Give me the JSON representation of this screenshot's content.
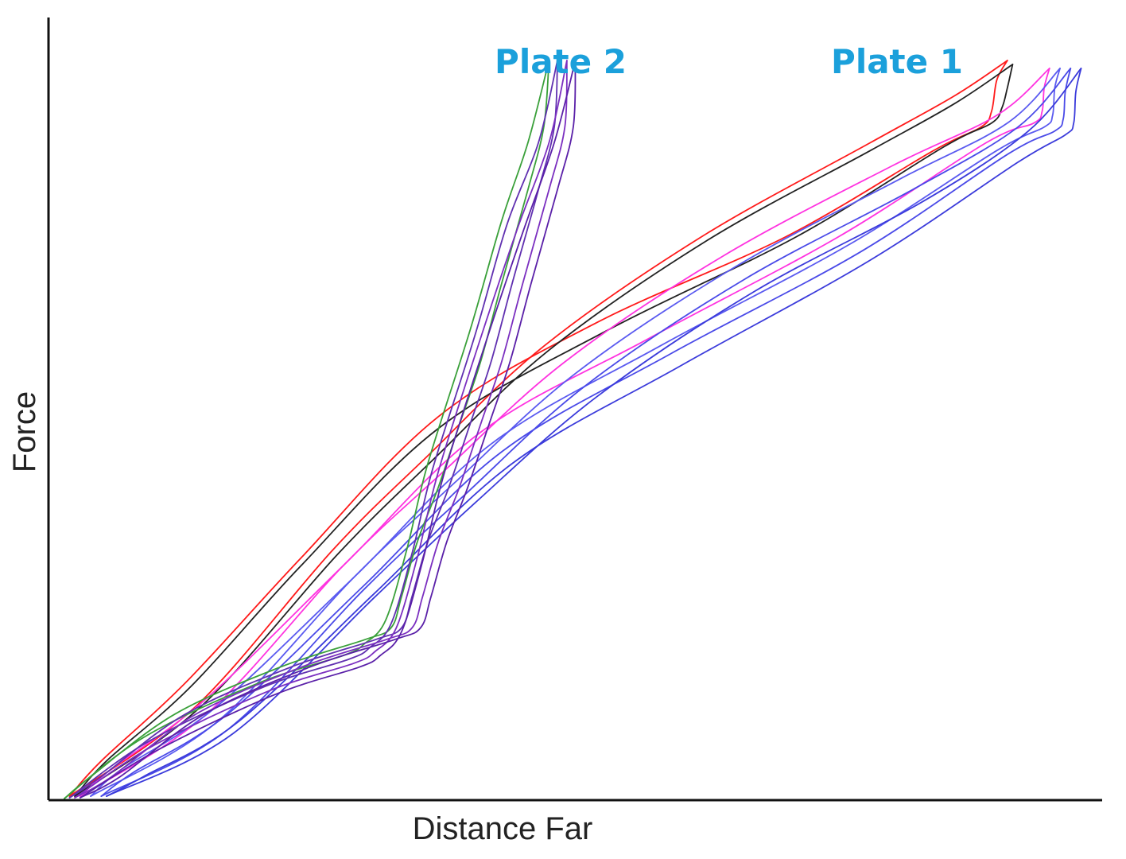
{
  "chart_data": {
    "type": "line",
    "title": "",
    "xlabel": "Distance Far",
    "ylabel": "Force",
    "xlim": [
      0,
      100
    ],
    "ylim": [
      0,
      100
    ],
    "grid": false,
    "ticks": false,
    "annotations": [
      {
        "text": "Plate 2",
        "color": "#1ba0db",
        "x": 49,
        "y": 105
      },
      {
        "text": "Plate 1",
        "color": "#1ba0db",
        "x": 81,
        "y": 105
      }
    ],
    "series": [
      {
        "group": "plate-1",
        "color": "#ff1a1a",
        "load": [
          [
            2,
            0.5
          ],
          [
            14,
            12
          ],
          [
            27,
            32
          ],
          [
            36,
            44
          ],
          [
            47,
            58
          ],
          [
            62,
            72
          ],
          [
            78,
            84
          ],
          [
            86,
            90
          ],
          [
            91,
            94.5
          ]
        ],
        "unload": [
          [
            91,
            94.5
          ],
          [
            90,
            92
          ],
          [
            89.5,
            88
          ],
          [
            88.5,
            86
          ],
          [
            84,
            83
          ],
          [
            70,
            72
          ],
          [
            52,
            61
          ],
          [
            37,
            49
          ],
          [
            24,
            31
          ],
          [
            13,
            15
          ],
          [
            5,
            5
          ],
          [
            2,
            0.5
          ]
        ]
      },
      {
        "group": "plate-1",
        "color": "#222222",
        "load": [
          [
            2.5,
            0.5
          ],
          [
            14.5,
            12
          ],
          [
            27.5,
            31.5
          ],
          [
            36.5,
            43.5
          ],
          [
            47.5,
            57.5
          ],
          [
            62.5,
            71.5
          ],
          [
            78,
            83
          ],
          [
            86,
            89
          ],
          [
            91.5,
            94
          ]
        ],
        "unload": [
          [
            91.5,
            94
          ],
          [
            91,
            91
          ],
          [
            90.5,
            88.5
          ],
          [
            89.5,
            86.5
          ],
          [
            85,
            83.5
          ],
          [
            71,
            72
          ],
          [
            53,
            60
          ],
          [
            37,
            47.5
          ],
          [
            24,
            30
          ],
          [
            13.5,
            14.5
          ],
          [
            5.5,
            5
          ],
          [
            2.5,
            0.5
          ]
        ]
      },
      {
        "group": "plate-1",
        "color": "#ff33e0",
        "load": [
          [
            3,
            0.5
          ],
          [
            15,
            11
          ],
          [
            28,
            30
          ],
          [
            37.5,
            42
          ],
          [
            49,
            56
          ],
          [
            64,
            69.5
          ],
          [
            80,
            81
          ],
          [
            90,
            87.5
          ],
          [
            95,
            93.5
          ]
        ],
        "unload": [
          [
            95,
            93.5
          ],
          [
            94.5,
            91
          ],
          [
            94.3,
            88
          ],
          [
            93.5,
            86.5
          ],
          [
            89,
            84
          ],
          [
            75,
            72
          ],
          [
            57,
            59
          ],
          [
            41,
            47
          ],
          [
            28,
            30
          ],
          [
            15,
            13
          ],
          [
            6,
            4
          ],
          [
            3,
            0.5
          ]
        ]
      },
      {
        "group": "plate-1",
        "color": "#5a5af0",
        "load": [
          [
            4,
            0.5
          ],
          [
            16,
            10
          ],
          [
            29,
            28.5
          ],
          [
            38.5,
            40.5
          ],
          [
            50,
            54.5
          ],
          [
            65,
            68
          ],
          [
            81,
            79.5
          ],
          [
            91,
            86.5
          ],
          [
            96,
            93.5
          ]
        ],
        "unload": [
          [
            96,
            93.5
          ],
          [
            95.5,
            91
          ],
          [
            95.3,
            87.5
          ],
          [
            94.5,
            86
          ],
          [
            90,
            83
          ],
          [
            76,
            71
          ],
          [
            58,
            58
          ],
          [
            42,
            45.5
          ],
          [
            29,
            28.5
          ],
          [
            16,
            12
          ],
          [
            7,
            4
          ],
          [
            4,
            0.5
          ]
        ]
      },
      {
        "group": "plate-1",
        "color": "#4a4ae8",
        "load": [
          [
            5,
            0.5
          ],
          [
            17,
            9
          ],
          [
            30,
            27
          ],
          [
            39.5,
            39
          ],
          [
            51,
            53
          ],
          [
            66,
            66.5
          ],
          [
            82,
            78
          ],
          [
            92,
            86
          ],
          [
            97,
            93.5
          ]
        ],
        "unload": [
          [
            97,
            93.5
          ],
          [
            96.5,
            90.5
          ],
          [
            96.3,
            87
          ],
          [
            95.5,
            85.5
          ],
          [
            91,
            82.5
          ],
          [
            77,
            70
          ],
          [
            59,
            57
          ],
          [
            43,
            44.5
          ],
          [
            30,
            27.5
          ],
          [
            17,
            11
          ],
          [
            8,
            3.5
          ],
          [
            5,
            0.5
          ]
        ]
      },
      {
        "group": "plate-1",
        "color": "#3b3bdb",
        "load": [
          [
            5.5,
            0.5
          ],
          [
            17.5,
            8.5
          ],
          [
            31,
            26
          ],
          [
            40.5,
            38
          ],
          [
            52,
            51.5
          ],
          [
            67,
            65
          ],
          [
            83,
            76.5
          ],
          [
            93,
            85.5
          ],
          [
            98,
            93.5
          ]
        ],
        "unload": [
          [
            98,
            93.5
          ],
          [
            97.5,
            90.5
          ],
          [
            97.3,
            86.5
          ],
          [
            96.5,
            85
          ],
          [
            92,
            81.5
          ],
          [
            78,
            69
          ],
          [
            60,
            55.5
          ],
          [
            44,
            43
          ],
          [
            31,
            26.5
          ],
          [
            18,
            10
          ],
          [
            9,
            3
          ],
          [
            5.5,
            0.5
          ]
        ]
      },
      {
        "group": "plate-2",
        "color": "#3aa03a",
        "load": [
          [
            1.5,
            0.2
          ],
          [
            9,
            8
          ],
          [
            20,
            15
          ],
          [
            28,
            18.5
          ],
          [
            30,
            20
          ],
          [
            32,
            23
          ],
          [
            34,
            32
          ],
          [
            36,
            43
          ],
          [
            40,
            60
          ],
          [
            43,
            74
          ],
          [
            45.5,
            84
          ],
          [
            47.5,
            94.5
          ]
        ],
        "unload": [
          [
            47.5,
            94.5
          ],
          [
            47,
            86
          ],
          [
            45.5,
            78
          ],
          [
            43,
            66
          ],
          [
            41,
            56
          ],
          [
            39,
            48
          ],
          [
            37,
            40
          ],
          [
            35,
            33
          ],
          [
            33.5,
            26
          ],
          [
            32.5,
            22
          ],
          [
            30,
            20.5
          ],
          [
            22,
            17
          ],
          [
            12,
            11
          ],
          [
            4,
            3
          ],
          [
            1.5,
            0.2
          ]
        ]
      },
      {
        "group": "plate-2",
        "color": "#6030b0",
        "load": [
          [
            2,
            0.3
          ],
          [
            9.5,
            7.5
          ],
          [
            20.5,
            14.5
          ],
          [
            28.5,
            18
          ],
          [
            30.5,
            19.5
          ],
          [
            32.5,
            22.5
          ],
          [
            34.5,
            31.5
          ],
          [
            36.5,
            42.5
          ],
          [
            40.5,
            59.5
          ],
          [
            43.5,
            73.5
          ],
          [
            46.5,
            84
          ],
          [
            48.3,
            94.5
          ]
        ],
        "unload": [
          [
            48.3,
            94.5
          ],
          [
            48,
            86
          ],
          [
            46.5,
            78
          ],
          [
            44,
            66
          ],
          [
            42,
            56
          ],
          [
            40,
            48
          ],
          [
            38,
            40
          ],
          [
            36,
            33
          ],
          [
            34.5,
            26
          ],
          [
            33.5,
            22
          ],
          [
            31,
            20.5
          ],
          [
            23,
            17
          ],
          [
            13,
            11
          ],
          [
            5,
            3
          ],
          [
            2,
            0.3
          ]
        ]
      },
      {
        "group": "plate-2",
        "color": "#7b2fc0",
        "load": [
          [
            2.5,
            0.3
          ],
          [
            10,
            7
          ],
          [
            21,
            14
          ],
          [
            29,
            17.5
          ],
          [
            31,
            19
          ],
          [
            33,
            22
          ],
          [
            35,
            31
          ],
          [
            37,
            42
          ],
          [
            41,
            59
          ],
          [
            44.5,
            73
          ],
          [
            47.5,
            84
          ],
          [
            49.2,
            94.5
          ]
        ],
        "unload": [
          [
            49.2,
            94.5
          ],
          [
            49,
            86
          ],
          [
            47.5,
            78
          ],
          [
            45,
            66
          ],
          [
            43,
            56
          ],
          [
            41,
            48
          ],
          [
            39,
            40
          ],
          [
            37,
            33
          ],
          [
            35.5,
            26
          ],
          [
            34.5,
            22
          ],
          [
            32,
            20.5
          ],
          [
            24,
            17
          ],
          [
            14,
            11
          ],
          [
            6,
            3
          ],
          [
            2.5,
            0.3
          ]
        ]
      },
      {
        "group": "plate-2",
        "color": "#5a20a8",
        "load": [
          [
            3,
            0.3
          ],
          [
            10.5,
            6.5
          ],
          [
            21.5,
            13.5
          ],
          [
            29.5,
            17
          ],
          [
            31.5,
            18.5
          ],
          [
            33.5,
            21.5
          ],
          [
            35.5,
            30.5
          ],
          [
            37.5,
            41.5
          ],
          [
            41.5,
            58.5
          ],
          [
            45,
            72.5
          ],
          [
            48,
            84
          ],
          [
            50,
            94.5
          ]
        ],
        "unload": [
          [
            50,
            94.5
          ],
          [
            49.8,
            86
          ],
          [
            48.3,
            78
          ],
          [
            45.8,
            66
          ],
          [
            43.8,
            56
          ],
          [
            41.8,
            48
          ],
          [
            39.8,
            40
          ],
          [
            37.8,
            33
          ],
          [
            36.3,
            26
          ],
          [
            35.3,
            22
          ],
          [
            32.8,
            20.5
          ],
          [
            24.8,
            17
          ],
          [
            14.8,
            11
          ],
          [
            6.8,
            3
          ],
          [
            3,
            0.3
          ]
        ]
      }
    ]
  }
}
